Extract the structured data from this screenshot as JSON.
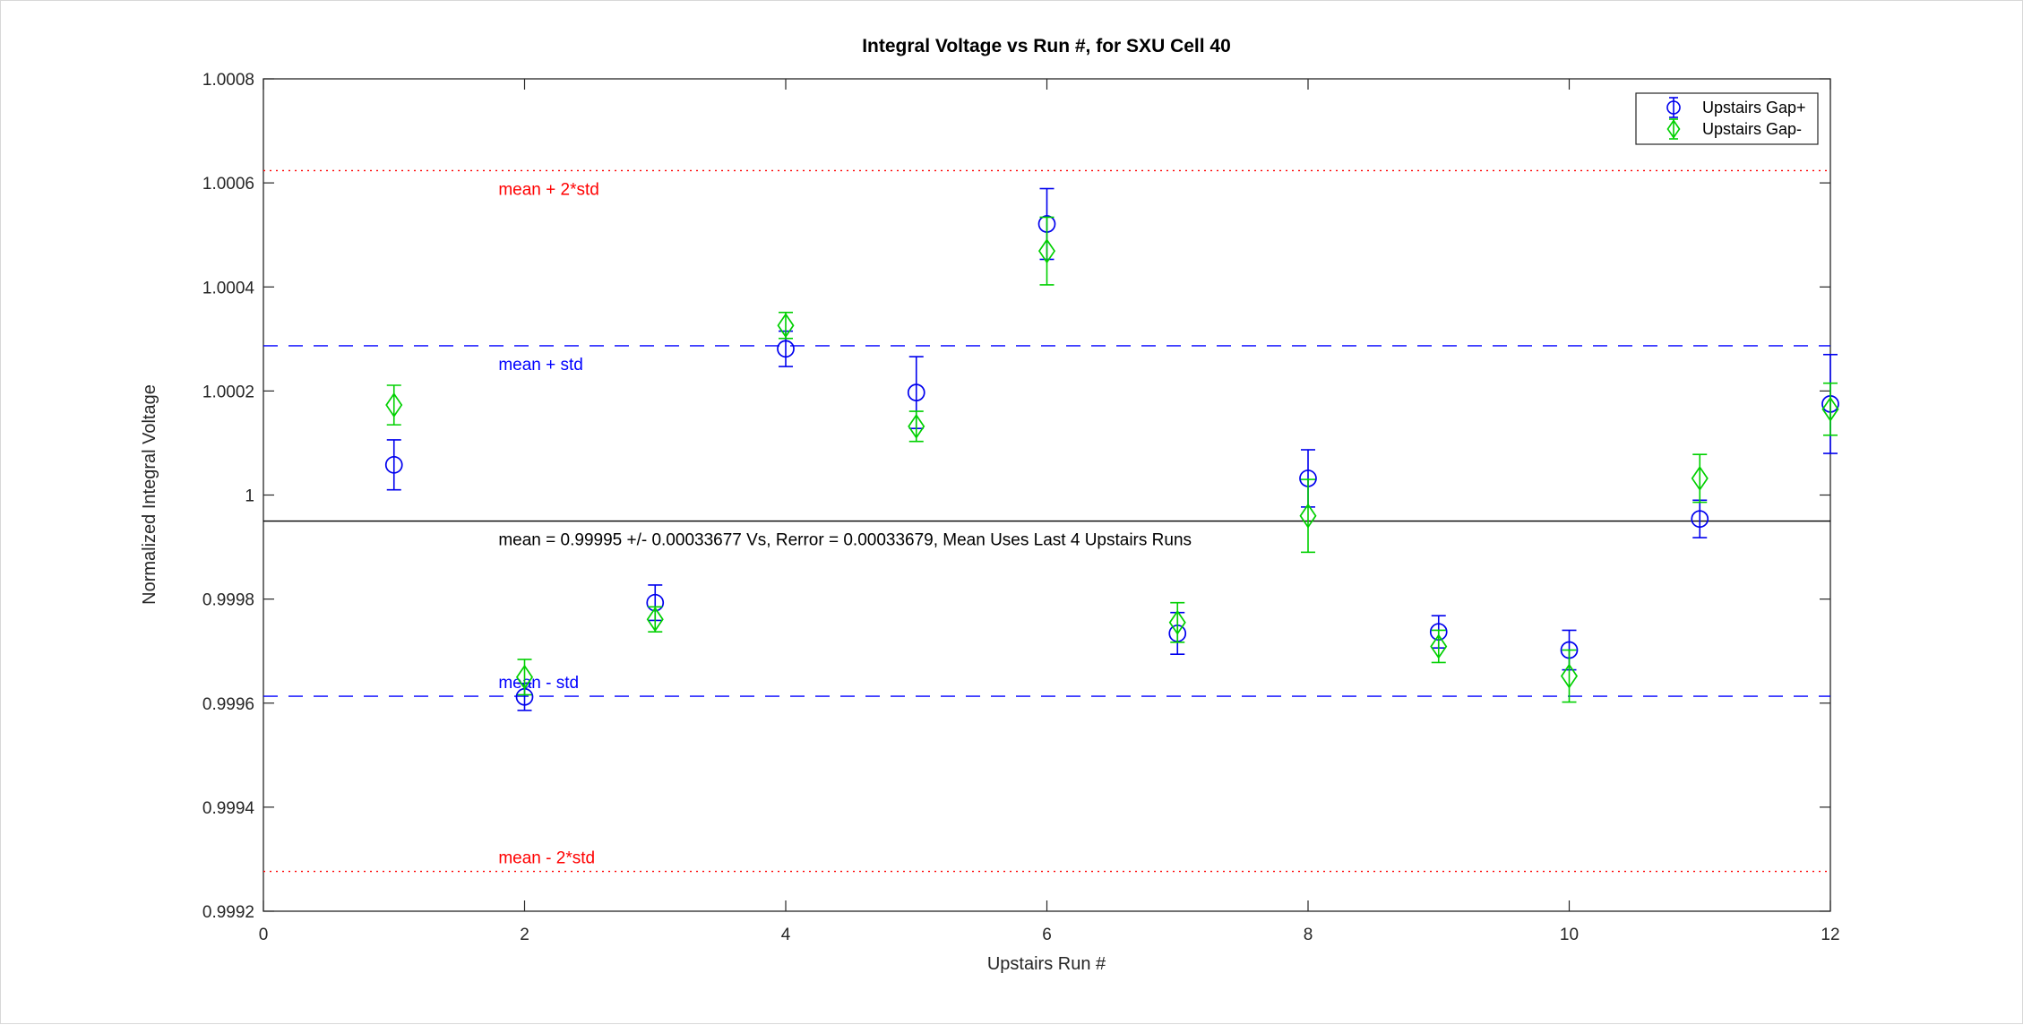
{
  "chart_data": {
    "type": "scatter",
    "title": "Integral Voltage vs Run #, for SXU Cell 40",
    "xlabel": "Upstairs Run #",
    "ylabel": "Normalized Integral Voltage",
    "xlim": [
      0,
      12
    ],
    "ylim": [
      0.9992,
      1.0008
    ],
    "xticks": [
      0,
      2,
      4,
      6,
      8,
      10,
      12
    ],
    "xtick_labels": [
      "0",
      "2",
      "4",
      "6",
      "8",
      "10",
      "12"
    ],
    "yticks": [
      0.9992,
      0.9994,
      0.9996,
      0.9998,
      1.0,
      1.0002,
      1.0004,
      1.0006,
      1.0008
    ],
    "ytick_labels": [
      "0.9992",
      "0.9994",
      "0.9996",
      "0.9998",
      "1",
      "1.0002",
      "1.0004",
      "1.0006",
      "1.0008"
    ],
    "grid": false,
    "legend_position": "top-right-inside",
    "background_color": "#ffffff",
    "axis_color": "#262626",
    "series": [
      {
        "name": "Upstairs Gap+",
        "slug": "upstairs-gap-plus",
        "marker": "circle",
        "color": "#0000EE",
        "x": [
          1,
          2,
          3,
          4,
          5,
          6,
          7,
          8,
          9,
          10,
          11,
          12
        ],
        "y": [
          1.000058,
          0.999612,
          0.999793,
          1.000281,
          1.000197,
          1.000521,
          0.999734,
          1.000032,
          0.999737,
          0.999702,
          0.999954,
          1.000175
        ],
        "yerr": [
          4.8e-05,
          2.6e-05,
          3.4e-05,
          3.4e-05,
          6.9e-05,
          6.8e-05,
          4e-05,
          5.5e-05,
          3.1e-05,
          3.8e-05,
          3.6e-05,
          9.5e-05
        ]
      },
      {
        "name": "Upstairs Gap-",
        "slug": "upstairs-gap-minus",
        "marker": "diamond",
        "color": "#00D000",
        "x": [
          1,
          2,
          3,
          4,
          5,
          6,
          7,
          8,
          9,
          10,
          11,
          12
        ],
        "y": [
          1.000173,
          0.99965,
          0.999761,
          1.000326,
          1.000132,
          1.000469,
          0.999755,
          0.99996,
          0.999709,
          0.999652,
          1.000032,
          1.000165
        ],
        "yerr": [
          3.8e-05,
          3.4e-05,
          2.4e-05,
          2.5e-05,
          2.9e-05,
          6.5e-05,
          3.8e-05,
          7e-05,
          3.1e-05,
          5e-05,
          4.6e-05,
          5e-05
        ]
      }
    ],
    "statistics": {
      "mean": 0.99995,
      "std": 0.00033677,
      "rerror": 0.00033679
    },
    "reference_lines": [
      {
        "name": "mean-plus-2std",
        "label": "mean + 2*std",
        "value": 1.0006235,
        "style": "dotted",
        "color": "#FF0000",
        "label_x": 1.8,
        "label_side": "below"
      },
      {
        "name": "mean-plus-std",
        "label": "mean + std",
        "value": 1.0002868,
        "style": "dashed",
        "color": "#0000FF",
        "label_x": 1.8,
        "label_side": "below"
      },
      {
        "name": "mean",
        "label": "mean = 0.99995 +/- 0.00033677 Vs, Rerror = 0.00033679, Mean Uses Last 4 Upstairs Runs",
        "value": 0.99995,
        "style": "solid",
        "color": "#000000",
        "label_x": 1.8,
        "label_side": "below"
      },
      {
        "name": "mean-minus-std",
        "label": "mean - std",
        "value": 0.9996132,
        "style": "dashed",
        "color": "#0000FF",
        "label_x": 1.8,
        "label_side": "above"
      },
      {
        "name": "mean-minus-2std",
        "label": "mean - 2*std",
        "value": 0.9992765,
        "style": "dotted",
        "color": "#FF0000",
        "label_x": 1.8,
        "label_side": "above"
      }
    ],
    "legend": {
      "entries": [
        "Upstairs Gap+",
        "Upstairs Gap-"
      ]
    }
  }
}
